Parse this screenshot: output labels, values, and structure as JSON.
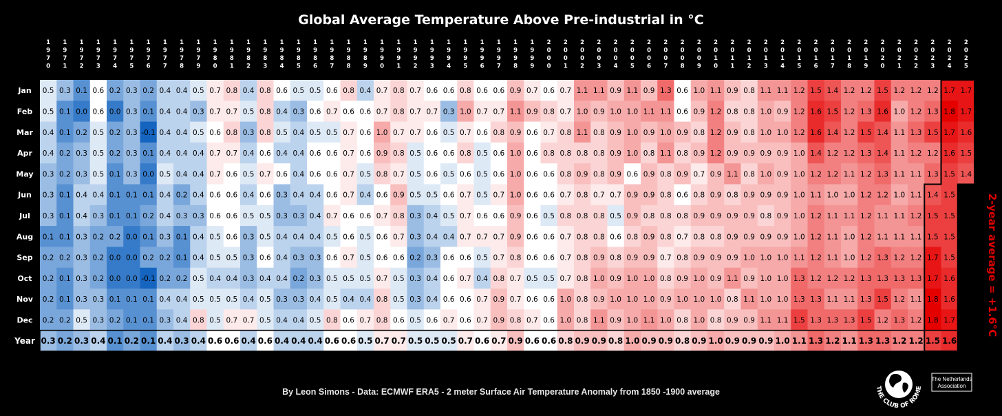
{
  "header": {
    "title": "Global Average Temperature Above Pre-industrial in °C"
  },
  "footer": {
    "credit": "By Leon Simons - Data: ECMWF ERA5 - 2 meter Surface Air Temperature Anomaly from 1850 -1900 average"
  },
  "logo": {
    "org_text": "THE CLUB OF ROME",
    "badge_line1": "The Netherlands",
    "badge_line2": "Association"
  },
  "annotation": {
    "text": "2-year average = +1.6°C",
    "color": "#e00000"
  },
  "colors": {
    "cold": "#1565c0",
    "neutral": "#ffffff",
    "warm": "#e50000",
    "background": "#000000"
  },
  "chart_data": {
    "type": "heatmap",
    "title": "Global Average Temperature Above Pre-industrial in °C",
    "x_categories": [
      "1970",
      "1971",
      "1972",
      "1973",
      "1974",
      "1975",
      "1976",
      "1977",
      "1978",
      "1979",
      "1980",
      "1981",
      "1982",
      "1983",
      "1984",
      "1985",
      "1986",
      "1987",
      "1988",
      "1989",
      "1990",
      "1991",
      "1992",
      "1993",
      "1994",
      "1995",
      "1996",
      "1997",
      "1998",
      "1999",
      "2000",
      "2001",
      "2002",
      "2003",
      "2004",
      "2005",
      "2006",
      "2007",
      "2008",
      "2009",
      "2010",
      "2011",
      "2012",
      "2013",
      "2014",
      "2015",
      "2016",
      "2017",
      "2018",
      "2019",
      "2020",
      "2021",
      "2022",
      "2023",
      "2024",
      "2025"
    ],
    "y_categories": [
      "Jan",
      "Feb",
      "Mar",
      "Apr",
      "May",
      "Jun",
      "Jul",
      "Aug",
      "Sep",
      "Oct",
      "Nov",
      "Dec",
      "Year"
    ],
    "values": [
      [
        0.5,
        0.3,
        0.1,
        0.6,
        0.2,
        0.3,
        0.2,
        0.4,
        0.4,
        0.5,
        0.7,
        0.8,
        0.4,
        0.8,
        0.6,
        0.5,
        0.5,
        0.6,
        0.8,
        0.4,
        0.7,
        0.8,
        0.7,
        0.6,
        0.6,
        0.8,
        0.6,
        0.6,
        0.9,
        0.7,
        0.6,
        0.7,
        1.1,
        1.1,
        0.9,
        1.1,
        0.9,
        1.3,
        0.6,
        1.0,
        1.1,
        0.9,
        0.8,
        1.1,
        1.1,
        1.2,
        1.5,
        1.4,
        1.2,
        1.2,
        1.5,
        1.2,
        1.2,
        1.2,
        1.7,
        1.7
      ],
      [
        0.5,
        0.1,
        0.0,
        0.6,
        0.0,
        0.3,
        0.1,
        0.4,
        0.4,
        0.3,
        0.7,
        0.7,
        0.5,
        0.8,
        0.4,
        0.3,
        0.6,
        0.7,
        0.6,
        0.6,
        0.7,
        0.8,
        0.7,
        0.7,
        0.3,
        1.0,
        0.7,
        0.7,
        1.1,
        0.9,
        0.8,
        0.7,
        1.0,
        0.9,
        1.0,
        1.0,
        1.1,
        1.1,
        0.6,
        0.9,
        1.2,
        0.8,
        0.8,
        1.0,
        0.9,
        1.2,
        1.6,
        1.5,
        1.2,
        1.3,
        1.6,
        1.0,
        1.2,
        1.3,
        1.8,
        1.7
      ],
      [
        0.4,
        0.1,
        0.2,
        0.5,
        0.2,
        0.3,
        -0.1,
        0.4,
        0.4,
        0.5,
        0.6,
        0.8,
        0.3,
        0.8,
        0.5,
        0.4,
        0.5,
        0.5,
        0.7,
        0.6,
        1.0,
        0.7,
        0.7,
        0.6,
        0.5,
        0.7,
        0.6,
        0.8,
        0.9,
        0.6,
        0.7,
        0.8,
        1.1,
        0.8,
        0.9,
        1.0,
        0.9,
        1.0,
        0.9,
        0.8,
        1.2,
        0.9,
        0.8,
        1.0,
        1.0,
        1.2,
        1.6,
        1.4,
        1.2,
        1.5,
        1.4,
        1.1,
        1.3,
        1.5,
        1.7,
        1.6
      ],
      [
        0.4,
        0.2,
        0.3,
        0.5,
        0.2,
        0.3,
        0.1,
        0.4,
        0.4,
        0.4,
        0.7,
        0.7,
        0.4,
        0.6,
        0.4,
        0.4,
        0.6,
        0.6,
        0.7,
        0.6,
        0.9,
        0.8,
        0.5,
        0.6,
        0.6,
        0.8,
        0.5,
        0.6,
        1.0,
        0.6,
        0.8,
        0.8,
        0.8,
        0.8,
        0.9,
        1.0,
        0.8,
        1.1,
        0.8,
        0.9,
        1.2,
        0.9,
        0.9,
        0.9,
        0.9,
        1.0,
        1.4,
        1.2,
        1.2,
        1.3,
        1.4,
        1.1,
        1.2,
        1.2,
        1.6,
        1.5
      ],
      [
        0.3,
        0.2,
        0.3,
        0.5,
        0.1,
        0.3,
        0.0,
        0.5,
        0.4,
        0.4,
        0.7,
        0.6,
        0.5,
        0.7,
        0.6,
        0.4,
        0.6,
        0.6,
        0.7,
        0.5,
        0.8,
        0.7,
        0.5,
        0.6,
        0.5,
        0.6,
        0.5,
        0.6,
        1.0,
        0.6,
        0.6,
        0.8,
        0.9,
        0.8,
        0.9,
        0.6,
        0.9,
        0.8,
        0.9,
        0.7,
        0.9,
        1.1,
        0.8,
        1.0,
        0.9,
        1.0,
        1.2,
        1.2,
        1.1,
        1.2,
        1.3,
        1.1,
        1.1,
        1.3,
        1.5,
        1.4
      ],
      [
        0.3,
        0.1,
        0.4,
        0.4,
        0.1,
        0.1,
        0.1,
        0.4,
        0.2,
        0.4,
        0.6,
        0.6,
        0.4,
        0.6,
        0.3,
        0.4,
        0.4,
        0.6,
        0.7,
        0.4,
        0.6,
        0.9,
        0.5,
        0.5,
        0.6,
        0.7,
        0.5,
        0.7,
        1.0,
        0.6,
        0.6,
        0.7,
        0.8,
        0.7,
        0.7,
        0.9,
        0.9,
        0.8,
        0.6,
        0.8,
        0.9,
        0.8,
        0.9,
        0.9,
        0.9,
        1.0,
        1.1,
        1.0,
        1.0,
        1.2,
        1.2,
        1.0,
        1.1,
        1.4,
        1.5,
        null
      ],
      [
        0.3,
        0.1,
        0.4,
        0.3,
        0.1,
        0.1,
        0.2,
        0.4,
        0.3,
        0.3,
        0.6,
        0.6,
        0.5,
        0.5,
        0.3,
        0.3,
        0.4,
        0.7,
        0.6,
        0.6,
        0.7,
        0.8,
        0.3,
        0.4,
        0.5,
        0.7,
        0.6,
        0.6,
        0.9,
        0.6,
        0.5,
        0.8,
        0.8,
        0.8,
        0.5,
        0.9,
        0.8,
        0.8,
        0.8,
        0.9,
        0.9,
        0.9,
        0.9,
        0.8,
        0.9,
        1.0,
        1.2,
        1.1,
        1.1,
        1.2,
        1.1,
        1.1,
        1.2,
        1.5,
        1.5,
        null
      ],
      [
        0.1,
        0.1,
        0.3,
        0.2,
        0.2,
        0.0,
        0.1,
        0.3,
        0.1,
        0.4,
        0.5,
        0.6,
        0.3,
        0.5,
        0.4,
        0.4,
        0.4,
        0.5,
        0.6,
        0.5,
        0.6,
        0.7,
        0.3,
        0.4,
        0.4,
        0.7,
        0.7,
        0.7,
        0.9,
        0.6,
        0.6,
        0.7,
        0.8,
        0.8,
        0.6,
        0.8,
        0.9,
        0.8,
        0.7,
        0.8,
        0.8,
        0.9,
        0.9,
        0.9,
        0.9,
        1.0,
        1.2,
        1.1,
        1.0,
        1.2,
        1.1,
        1.1,
        1.1,
        1.5,
        1.5,
        null
      ],
      [
        0.2,
        0.2,
        0.3,
        0.2,
        0.0,
        0.0,
        0.2,
        0.2,
        0.1,
        0.4,
        0.5,
        0.5,
        0.3,
        0.6,
        0.4,
        0.3,
        0.3,
        0.6,
        0.7,
        0.5,
        0.6,
        0.6,
        0.2,
        0.3,
        0.6,
        0.6,
        0.5,
        0.7,
        0.8,
        0.6,
        0.6,
        0.7,
        0.8,
        0.9,
        0.8,
        0.9,
        0.9,
        0.7,
        0.8,
        0.9,
        0.9,
        0.9,
        1.0,
        1.0,
        1.0,
        1.1,
        1.2,
        1.1,
        1.0,
        1.2,
        1.3,
        1.2,
        1.2,
        1.7,
        1.5,
        null
      ],
      [
        0.2,
        0.1,
        0.3,
        0.2,
        0.0,
        0.0,
        -0.1,
        0.2,
        0.2,
        0.5,
        0.4,
        0.4,
        0.3,
        0.4,
        0.4,
        0.2,
        0.3,
        0.5,
        0.5,
        0.5,
        0.7,
        0.5,
        0.3,
        0.4,
        0.6,
        0.7,
        0.4,
        0.8,
        0.7,
        0.5,
        0.5,
        0.7,
        0.8,
        1.0,
        0.9,
        1.0,
        1.0,
        0.8,
        0.9,
        1.0,
        0.9,
        1.1,
        0.9,
        1.0,
        1.0,
        1.3,
        1.2,
        1.2,
        1.2,
        1.3,
        1.3,
        1.3,
        1.3,
        1.7,
        1.6,
        null
      ],
      [
        0.2,
        0.1,
        0.3,
        0.3,
        0.1,
        0.1,
        0.1,
        0.4,
        0.4,
        0.5,
        0.5,
        0.5,
        0.4,
        0.5,
        0.3,
        0.3,
        0.4,
        0.5,
        0.4,
        0.4,
        0.8,
        0.5,
        0.3,
        0.4,
        0.6,
        0.6,
        0.7,
        0.9,
        0.7,
        0.6,
        0.6,
        1.0,
        0.8,
        0.9,
        1.0,
        1.0,
        1.0,
        0.9,
        1.0,
        1.0,
        1.0,
        0.8,
        1.1,
        1.0,
        1.0,
        1.3,
        1.3,
        1.1,
        1.1,
        1.3,
        1.5,
        1.2,
        1.1,
        1.8,
        1.6,
        null
      ],
      [
        0.2,
        0.2,
        0.5,
        0.3,
        0.2,
        0.1,
        0.1,
        0.3,
        0.4,
        0.8,
        0.5,
        0.7,
        0.7,
        0.5,
        0.4,
        0.4,
        0.5,
        0.8,
        0.6,
        0.7,
        0.8,
        0.6,
        0.5,
        0.6,
        0.7,
        0.6,
        0.7,
        0.9,
        0.8,
        0.7,
        0.6,
        1.0,
        0.8,
        1.1,
        0.9,
        1.0,
        1.1,
        1.0,
        0.8,
        1.0,
        0.8,
        0.9,
        0.9,
        1.1,
        1.1,
        1.5,
        1.3,
        1.3,
        1.3,
        1.5,
        1.2,
        1.3,
        1.2,
        1.8,
        1.7,
        null
      ],
      [
        0.3,
        0.2,
        0.3,
        0.4,
        0.1,
        0.2,
        0.1,
        0.4,
        0.3,
        0.4,
        0.6,
        0.6,
        0.4,
        0.6,
        0.4,
        0.4,
        0.4,
        0.6,
        0.6,
        0.5,
        0.7,
        0.7,
        0.5,
        0.5,
        0.5,
        0.7,
        0.6,
        0.7,
        0.9,
        0.6,
        0.6,
        0.8,
        0.9,
        0.9,
        0.8,
        1.0,
        0.9,
        0.9,
        0.8,
        0.9,
        1.0,
        0.9,
        0.9,
        0.9,
        1.0,
        1.1,
        1.3,
        1.2,
        1.1,
        1.3,
        1.3,
        1.2,
        1.2,
        1.5,
        1.6,
        null
      ]
    ],
    "color_scale": {
      "min": -0.1,
      "mid": 0.6,
      "max": 1.8
    }
  }
}
